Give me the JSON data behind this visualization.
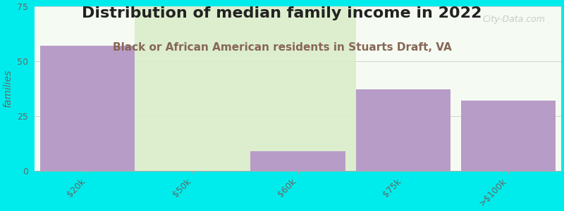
{
  "title": "Distribution of median family income in 2022",
  "subtitle": "Black or African American residents in Stuarts Draft, VA",
  "categories": [
    "$20k",
    "$50k",
    "$60k",
    "$75k",
    ">$100k"
  ],
  "values": [
    57,
    0,
    9,
    37,
    32
  ],
  "bar_color": "#b89cc8",
  "bg_bar_color_top": "#d8ecc8",
  "bg_bar_color_bottom": "#e8f4e0",
  "ylabel": "families",
  "ylim": [
    0,
    75
  ],
  "yticks": [
    0,
    25,
    50,
    75
  ],
  "background_color": "#00ecec",
  "plot_bg_top": "#f2f8ee",
  "plot_bg_bottom": "#ffffff",
  "title_fontsize": 16,
  "subtitle_fontsize": 11,
  "title_color": "#222222",
  "subtitle_color": "#886655",
  "watermark": "City-Data.com",
  "tick_label_color": "#666666",
  "ylabel_color": "#666666"
}
